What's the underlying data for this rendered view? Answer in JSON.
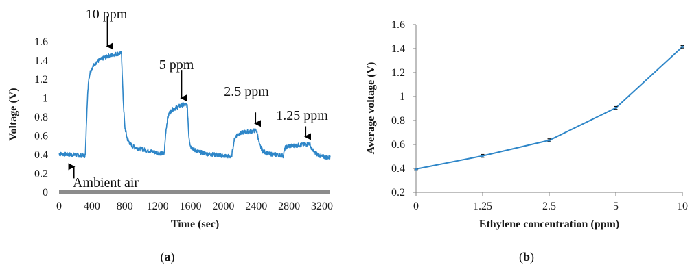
{
  "colors": {
    "series": "#2E86C8",
    "ambient_bar": "#8c8c8c",
    "axis": "#7f7f7f",
    "arrow": "#000000"
  },
  "panels": [
    {
      "caption_open": "(",
      "caption_label": "a",
      "caption_close": ")"
    },
    {
      "caption_open": "(",
      "caption_label": "b",
      "caption_close": ")"
    }
  ],
  "chart_data": [
    {
      "type": "line",
      "xlabel": "Time (sec)",
      "ylabel": "Voltage (V)",
      "xlim": [
        0,
        3300
      ],
      "ylim": [
        0,
        1.6
      ],
      "x_ticks": [
        "0",
        "400",
        "800",
        "1200",
        "1600",
        "2000",
        "2400",
        "2800",
        "3200"
      ],
      "y_ticks": [
        "0",
        "0.2",
        "0.4",
        "0.6",
        "0.8",
        "1",
        "1.2",
        "1.4",
        "1.6"
      ],
      "grid": false,
      "series": [
        {
          "x": [
            0,
            320,
            340,
            360,
            380,
            400,
            450,
            500,
            550,
            600,
            650,
            700,
            750,
            760,
            780,
            800,
            830,
            870,
            920,
            1000,
            1100,
            1200,
            1280,
            1300,
            1320,
            1340,
            1380,
            1450,
            1500,
            1550,
            1560,
            1580,
            1600,
            1650,
            1700,
            1800,
            1900,
            2000,
            2100,
            2130,
            2150,
            2180,
            2250,
            2350,
            2400,
            2420,
            2440,
            2480,
            2550,
            2650,
            2730,
            2750,
            2780,
            2900,
            3000,
            3050,
            3070,
            3100,
            3150,
            3200,
            3300
          ],
          "y": [
            0.41,
            0.39,
            0.9,
            1.2,
            1.28,
            1.32,
            1.38,
            1.41,
            1.43,
            1.45,
            1.46,
            1.47,
            1.48,
            1.47,
            1.0,
            0.7,
            0.57,
            0.51,
            0.48,
            0.46,
            0.44,
            0.42,
            0.41,
            0.65,
            0.78,
            0.84,
            0.88,
            0.91,
            0.93,
            0.93,
            0.92,
            0.6,
            0.49,
            0.45,
            0.43,
            0.41,
            0.4,
            0.39,
            0.38,
            0.55,
            0.6,
            0.62,
            0.64,
            0.65,
            0.66,
            0.6,
            0.5,
            0.44,
            0.41,
            0.4,
            0.39,
            0.47,
            0.49,
            0.5,
            0.51,
            0.52,
            0.47,
            0.43,
            0.4,
            0.38,
            0.37
          ]
        }
      ],
      "ambient_bar": {
        "y": 0
      },
      "annotations": [
        {
          "text": "10 ppm",
          "x": 590,
          "y": 1.48
        },
        {
          "text": "5 ppm",
          "x": 1490,
          "y": 0.93
        },
        {
          "text": "2.5 ppm",
          "x": 2390,
          "y": 0.66
        },
        {
          "text": "1.25 ppm",
          "x": 3000,
          "y": 0.52
        },
        {
          "text": "Ambient air",
          "x": 180,
          "y": 0.39
        }
      ]
    },
    {
      "type": "line",
      "xlabel": "Ethylene concentration (ppm)",
      "ylabel": "Average voltage (V)",
      "categories": [
        "0",
        "1.25",
        "2.5",
        "5",
        "10"
      ],
      "ylim": [
        0.2,
        1.6
      ],
      "y_ticks": [
        "0.2",
        "0.4",
        "0.6",
        "0.8",
        "1",
        "1.2",
        "1.4",
        "1.6"
      ],
      "grid": false,
      "series": [
        {
          "values": [
            0.395,
            0.505,
            0.635,
            0.905,
            1.415
          ],
          "errors": [
            0.006,
            0.012,
            0.012,
            0.012,
            0.01
          ]
        }
      ]
    }
  ]
}
